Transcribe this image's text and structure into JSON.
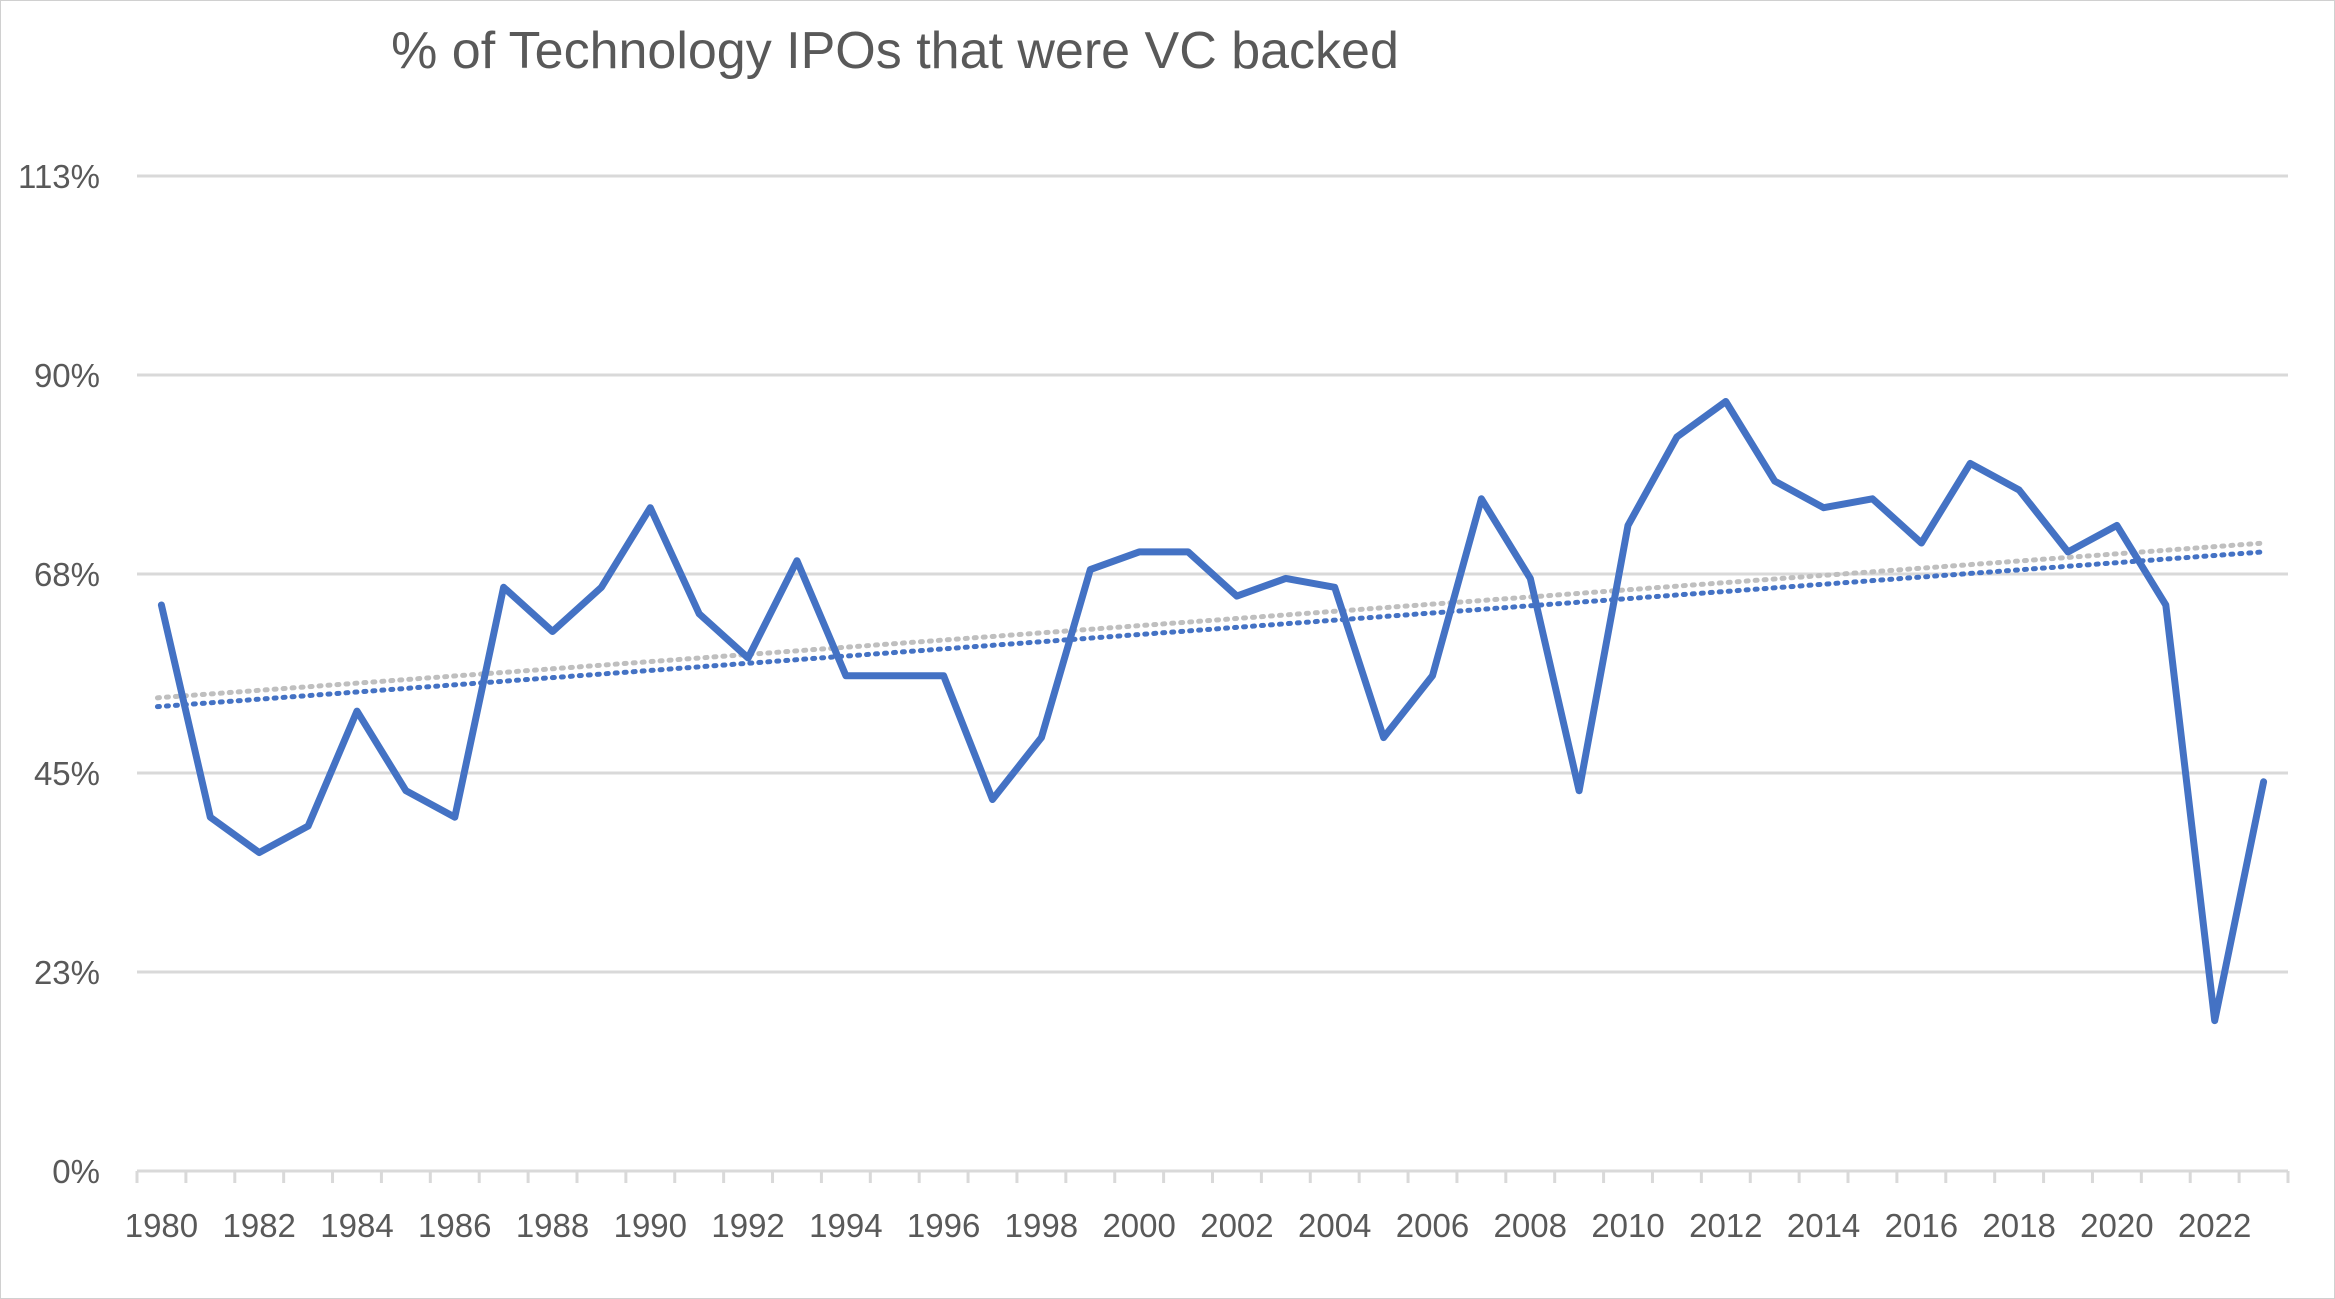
{
  "chart_data": {
    "type": "line",
    "title": "% of Technology IPOs that were VC backed",
    "xlabel": "",
    "ylabel": "",
    "ylim": [
      0,
      1.125
    ],
    "y_ticks": [
      {
        "value": 0,
        "label": "0%"
      },
      {
        "value": 0.225,
        "label": "23%"
      },
      {
        "value": 0.45,
        "label": "45%"
      },
      {
        "value": 0.675,
        "label": "68%"
      },
      {
        "value": 0.9,
        "label": "90%"
      },
      {
        "value": 1.125,
        "label": "113%"
      }
    ],
    "x_tick_labels": [
      "1980",
      "1982",
      "1984",
      "1986",
      "1988",
      "1990",
      "1992",
      "1994",
      "1996",
      "1998",
      "2000",
      "2002",
      "2004",
      "2006",
      "2008",
      "2010",
      "2012",
      "2014",
      "2016",
      "2018",
      "2020",
      "2022"
    ],
    "x": [
      1980,
      1981,
      1982,
      1983,
      1984,
      1985,
      1986,
      1987,
      1988,
      1989,
      1990,
      1991,
      1992,
      1993,
      1994,
      1995,
      1996,
      1997,
      1998,
      1999,
      2000,
      2001,
      2002,
      2003,
      2004,
      2005,
      2006,
      2007,
      2008,
      2009,
      2010,
      2011,
      2012,
      2013,
      2014,
      2015,
      2016,
      2017,
      2018,
      2019,
      2020,
      2021,
      2022,
      2023
    ],
    "series": [
      {
        "name": "% VC backed",
        "color": "#4472c4",
        "values": [
          0.64,
          0.4,
          0.36,
          0.39,
          0.52,
          0.43,
          0.4,
          0.66,
          0.61,
          0.66,
          0.75,
          0.63,
          0.58,
          0.69,
          0.56,
          0.56,
          0.56,
          0.42,
          0.49,
          0.68,
          0.7,
          0.7,
          0.65,
          0.67,
          0.66,
          0.49,
          0.56,
          0.76,
          0.67,
          0.43,
          0.73,
          0.83,
          0.87,
          0.78,
          0.75,
          0.76,
          0.71,
          0.8,
          0.77,
          0.7,
          0.73,
          0.64,
          0.17,
          0.44
        ]
      }
    ],
    "trendlines": [
      {
        "name": "trend-blue",
        "color": "#4472c4",
        "start": 0.525,
        "end": 0.7
      },
      {
        "name": "trend-grey",
        "color": "#bfbfbf",
        "start": 0.535,
        "end": 0.71
      }
    ],
    "grid": true
  }
}
